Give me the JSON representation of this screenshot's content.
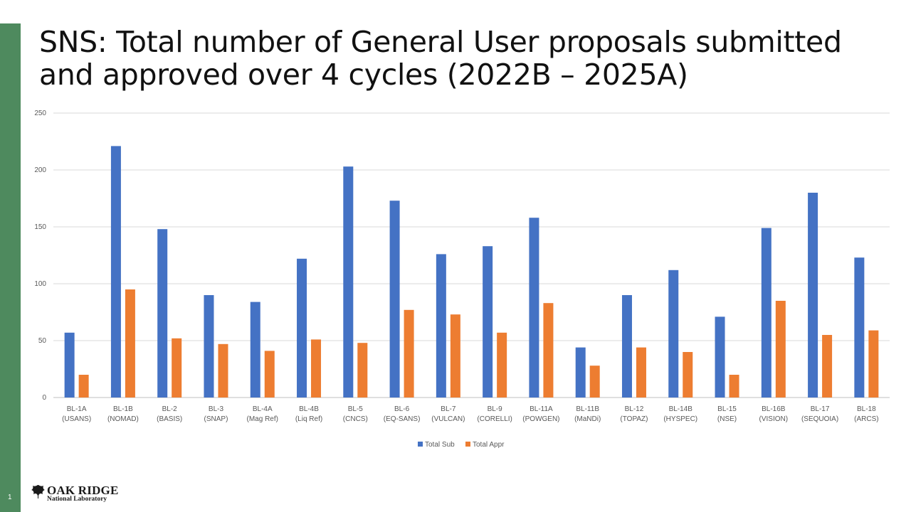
{
  "slide": {
    "title_line1": "SNS: Total number of General User proposals submitted",
    "title_line2": "and approved over 4 cycles (2022B – 2025A)",
    "page_number": "1"
  },
  "logo": {
    "line1": "OAK RIDGE",
    "line2": "National Laboratory",
    "icon": "leaf-icon"
  },
  "colors": {
    "sidebar": "#4e8a5e",
    "total_sub": "#4472c4",
    "total_appr": "#ed7d31",
    "grid": "#d9d9d9"
  },
  "chart_data": {
    "type": "bar",
    "categories": [
      [
        "BL-1A",
        "(USANS)"
      ],
      [
        "BL-1B",
        "(NOMAD)"
      ],
      [
        "BL-2",
        "(BASIS)"
      ],
      [
        "BL-3",
        "(SNAP)"
      ],
      [
        "BL-4A",
        "(Mag Ref)"
      ],
      [
        "BL-4B",
        "(Liq Ref)"
      ],
      [
        "BL-5",
        "(CNCS)"
      ],
      [
        "BL-6",
        "(EQ-SANS)"
      ],
      [
        "BL-7",
        "(VULCAN)"
      ],
      [
        "BL-9",
        "(CORELLI)"
      ],
      [
        "BL-11A",
        "(POWGEN)"
      ],
      [
        "BL-11B",
        "(MaNDi)"
      ],
      [
        "BL-12",
        "(TOPAZ)"
      ],
      [
        "BL-14B",
        "(HYSPEC)"
      ],
      [
        "BL-15",
        "(NSE)"
      ],
      [
        "BL-16B",
        "(VISION)"
      ],
      [
        "BL-17",
        "(SEQUOIA)"
      ],
      [
        "BL-18",
        "(ARCS)"
      ]
    ],
    "series": [
      {
        "name": "Total Sub",
        "values": [
          57,
          221,
          148,
          90,
          84,
          122,
          203,
          173,
          126,
          133,
          158,
          44,
          90,
          112,
          71,
          149,
          180,
          123
        ]
      },
      {
        "name": "Total Appr",
        "values": [
          20,
          95,
          52,
          47,
          41,
          51,
          48,
          77,
          73,
          57,
          83,
          28,
          44,
          40,
          20,
          85,
          55,
          59
        ]
      }
    ],
    "ylim": [
      0,
      250
    ],
    "yticks": [
      0,
      50,
      100,
      150,
      200,
      250
    ],
    "grid": true,
    "legend_position": "bottom-center"
  }
}
